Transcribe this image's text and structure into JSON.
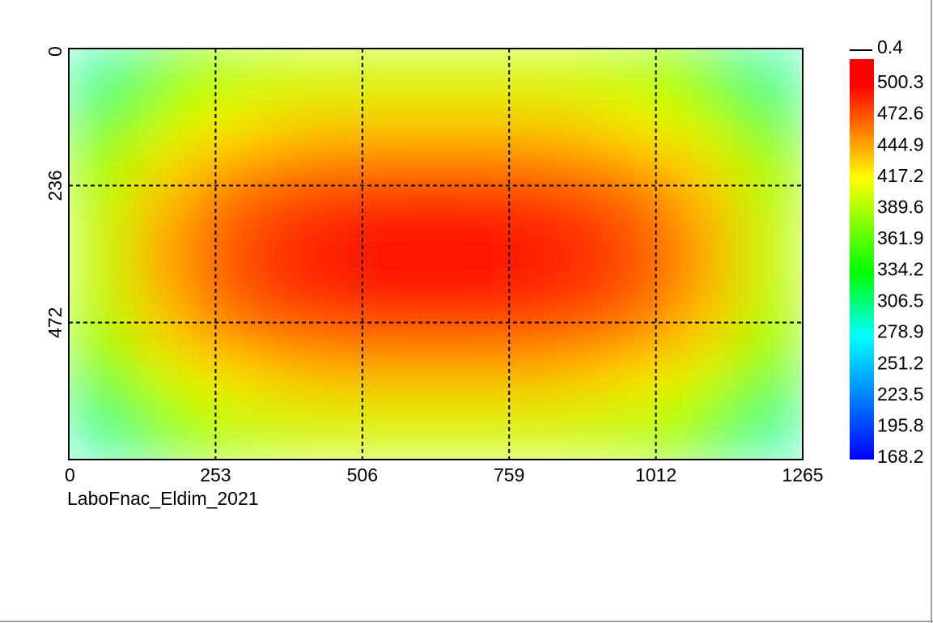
{
  "chart_data": {
    "type": "heatmap",
    "annotation": "LaboFnac_Eldim_2021",
    "xlim": [
      0,
      1265
    ],
    "ylim": [
      0,
      708
    ],
    "xticks": [
      0,
      253,
      506,
      759,
      1012,
      1265
    ],
    "yticks": [
      0,
      236,
      472
    ],
    "grid": true,
    "z": [
      [
        300,
        360,
        385,
        395,
        400,
        400,
        400,
        400,
        395,
        385,
        360,
        300
      ],
      [
        360,
        400,
        420,
        430,
        435,
        435,
        435,
        435,
        430,
        420,
        400,
        360
      ],
      [
        385,
        430,
        455,
        470,
        475,
        478,
        478,
        475,
        470,
        455,
        430,
        385
      ],
      [
        395,
        445,
        470,
        485,
        492,
        495,
        495,
        492,
        485,
        470,
        445,
        395
      ],
      [
        395,
        445,
        472,
        487,
        494,
        497,
        497,
        494,
        487,
        472,
        445,
        395
      ],
      [
        385,
        432,
        458,
        472,
        478,
        480,
        480,
        478,
        472,
        458,
        432,
        385
      ],
      [
        360,
        402,
        422,
        432,
        438,
        438,
        438,
        438,
        432,
        422,
        402,
        360
      ],
      [
        300,
        360,
        385,
        395,
        400,
        400,
        400,
        400,
        395,
        385,
        360,
        300
      ]
    ],
    "clim": [
      168.2,
      500.3
    ],
    "colorscale": [
      [
        0,
        "#0000ff"
      ],
      [
        0.33,
        "#00ffff"
      ],
      [
        0.5,
        "#00ff00"
      ],
      [
        0.75,
        "#ffff00"
      ],
      [
        1,
        "#ff0000"
      ]
    ],
    "colorbar_ticks": [
      500.3,
      472.6,
      444.9,
      417.2,
      389.6,
      361.9,
      334.2,
      306.5,
      278.9,
      251.2,
      223.5,
      195.8,
      168.2
    ],
    "colorbar_top_label": "0.4"
  }
}
